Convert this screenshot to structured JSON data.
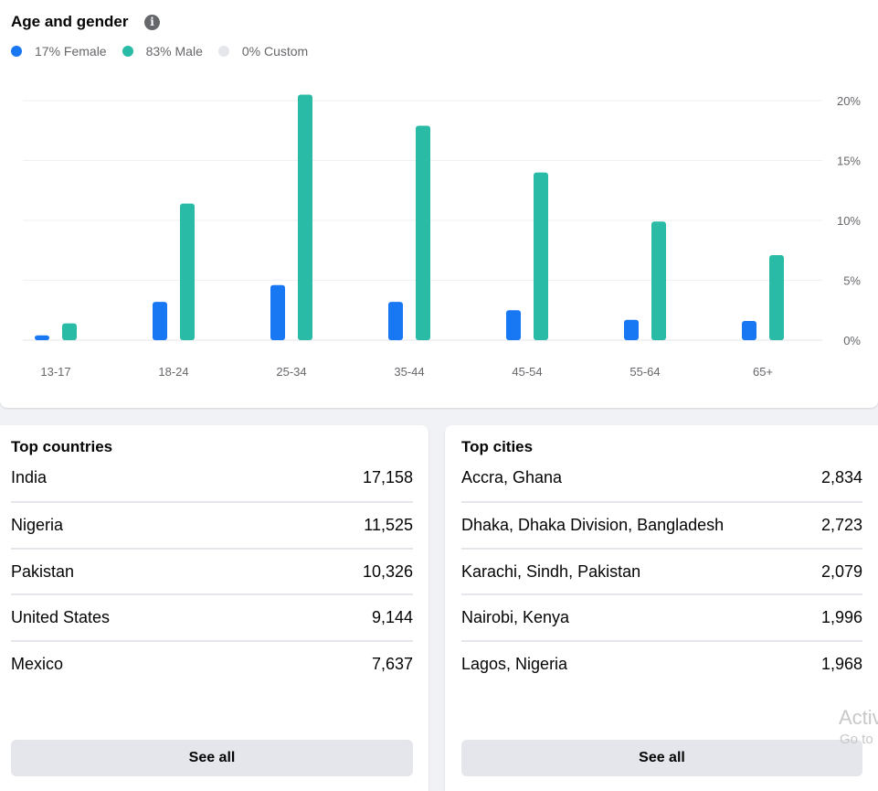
{
  "age_gender": {
    "title": "Age and gender",
    "info_icon": "info-icon",
    "legend": [
      {
        "label": "17% Female",
        "color": "#1877f2"
      },
      {
        "label": "83% Male",
        "color": "#2abba7"
      },
      {
        "label": "0% Custom",
        "color": "#e4e6eb"
      }
    ]
  },
  "chart_data": {
    "type": "bar",
    "categories": [
      "13-17",
      "18-24",
      "25-34",
      "35-44",
      "45-54",
      "55-64",
      "65+"
    ],
    "series": [
      {
        "name": "Female",
        "color": "#1877f2",
        "values": [
          0.4,
          3.2,
          4.6,
          3.2,
          2.5,
          1.7,
          1.6
        ]
      },
      {
        "name": "Male",
        "color": "#2abba7",
        "values": [
          1.4,
          11.4,
          20.5,
          17.9,
          14.0,
          9.9,
          7.1
        ]
      }
    ],
    "y_ticks": [
      "0%",
      "5%",
      "10%",
      "15%",
      "20%"
    ],
    "ylim": [
      0,
      20
    ],
    "grid": true,
    "y_axis_side": "right"
  },
  "top_countries": {
    "title": "Top countries",
    "rows": [
      {
        "name": "India",
        "value": "17,158"
      },
      {
        "name": "Nigeria",
        "value": "11,525"
      },
      {
        "name": "Pakistan",
        "value": "10,326"
      },
      {
        "name": "United States",
        "value": "9,144"
      },
      {
        "name": "Mexico",
        "value": "7,637"
      }
    ],
    "see_all_label": "See all"
  },
  "top_cities": {
    "title": "Top cities",
    "rows": [
      {
        "name": "Accra, Ghana",
        "value": "2,834"
      },
      {
        "name": "Dhaka, Dhaka Division, Bangladesh",
        "value": "2,723"
      },
      {
        "name": "Karachi, Sindh, Pakistan",
        "value": "2,079"
      },
      {
        "name": "Nairobi, Kenya",
        "value": "1,996"
      },
      {
        "name": "Lagos, Nigeria",
        "value": "1,968"
      }
    ],
    "see_all_label": "See all"
  },
  "watermark": {
    "line1": "Activ",
    "line2": "Go to"
  }
}
